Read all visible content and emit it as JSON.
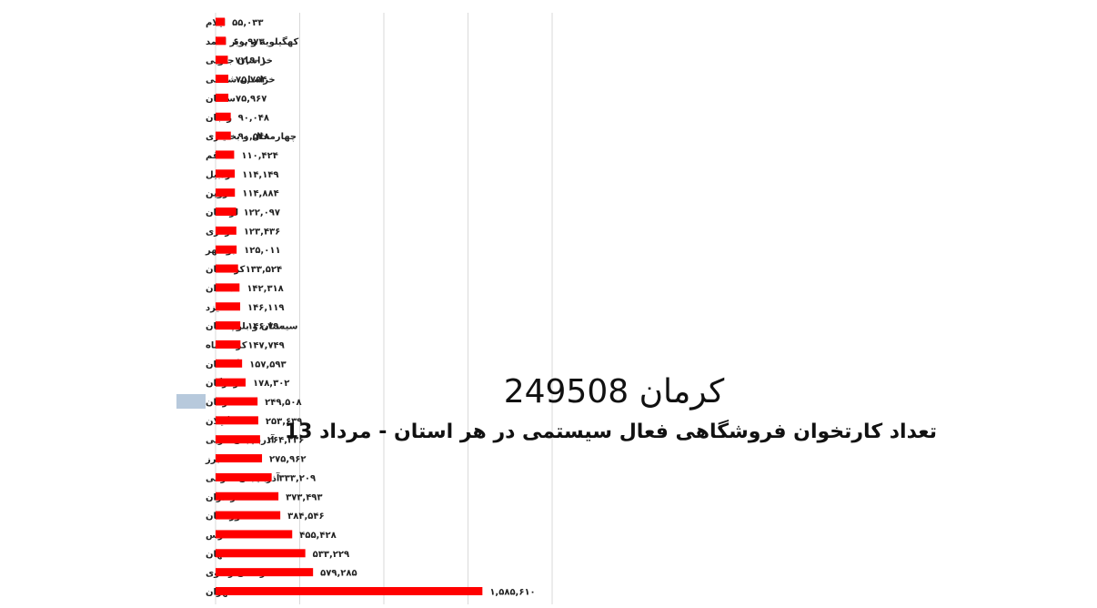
{
  "chart_data": {
    "type": "bar",
    "orientation": "horizontal",
    "title": "کرمان 249508",
    "subtitle": "تعداد کارتخوان فروشگاهی فعال سیستمی در هر استان - مرداد 13",
    "categories": [
      "ایلام",
      "کهگیلویه و بویر احمد",
      "خراسان جنوبی",
      "خراسان شمالی",
      "سمنان",
      "زنجان",
      "چهارمحال و بختیاری",
      "قم",
      "اردبیل",
      "قزوین",
      "لرستان",
      "مرکزی",
      "بوشهر",
      "کردستان",
      "همدان",
      "یزد",
      "سیستان و بلوچستان",
      "کرمانشاه",
      "گلستان",
      "هرمزگان",
      "کرمان",
      "گیلان",
      "آذربایجان غربی",
      "البرز",
      "آذربایجان شرقی",
      "مازندران",
      "خوزستان",
      "فارس",
      "اصفهان",
      "خراسان رضوی",
      "تهران"
    ],
    "values": [
      55033,
      60973,
      72901,
      75754,
      75967,
      90048,
      90548,
      110424,
      114149,
      114884,
      122097,
      123436,
      125011,
      133524,
      142318,
      146119,
      146790,
      147749,
      157593,
      178302,
      249508,
      253639,
      264336,
      275962,
      333209,
      373493,
      384546,
      455428,
      533229,
      579285,
      1585610
    ],
    "value_labels": [
      "۵۵,۰۳۳",
      "۶۰,۹۷۳",
      "۷۲,۹۰۱",
      "۷۵,۷۵۴",
      "۷۵,۹۶۷",
      "۹۰,۰۴۸",
      "۹۰,۵۴۸",
      "۱۱۰,۴۲۴",
      "۱۱۴,۱۴۹",
      "۱۱۴,۸۸۴",
      "۱۲۲,۰۹۷",
      "۱۲۳,۴۳۶",
      "۱۲۵,۰۱۱",
      "۱۳۳,۵۲۴",
      "۱۴۲,۳۱۸",
      "۱۴۶,۱۱۹",
      "۱۴۶,۷۹۰",
      "۱۴۷,۷۴۹",
      "۱۵۷,۵۹۳",
      "۱۷۸,۳۰۲",
      "۲۴۹,۵۰۸",
      "۲۵۳,۶۳۹",
      "۲۶۴,۳۳۶",
      "۲۷۵,۹۶۲",
      "۳۳۳,۲۰۹",
      "۳۷۳,۴۹۳",
      "۳۸۴,۵۴۶",
      "۴۵۵,۴۲۸",
      "۵۳۳,۲۲۹",
      "۵۷۹,۲۸۵",
      "۱,۵۸۵,۶۱۰"
    ],
    "highlight_category": "کرمان",
    "xlim": [
      0,
      2000000
    ],
    "grid": true,
    "bar_color": "#ff0000",
    "grid_color": "#d9d9d9",
    "highlight_color": "#b7c9dc"
  }
}
